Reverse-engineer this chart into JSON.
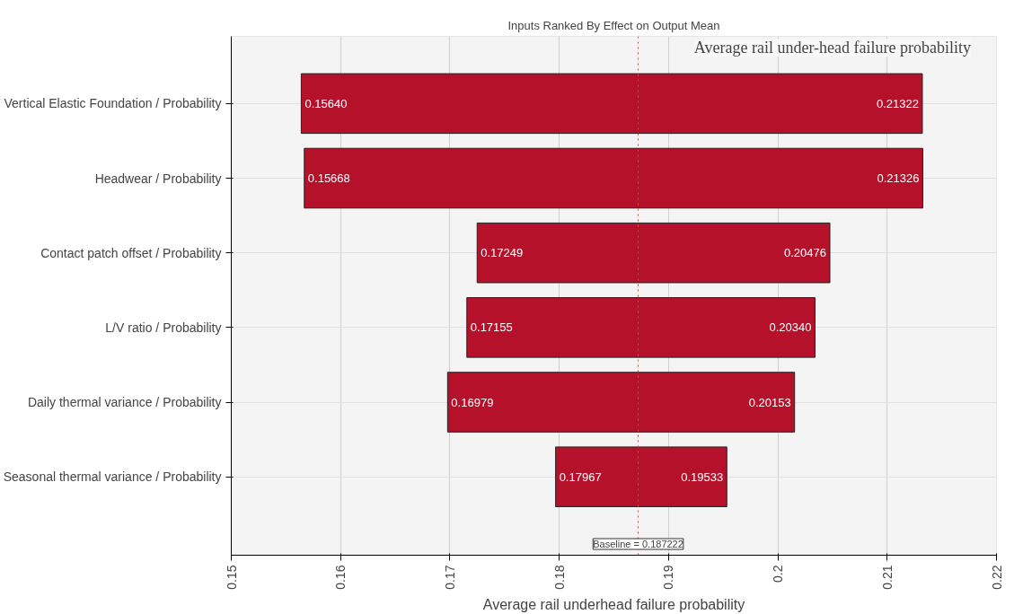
{
  "chart_data": {
    "type": "bar",
    "orientation": "horizontal",
    "title": "Inputs Ranked By Effect on Output Mean",
    "xlabel": "Average rail underhead failure probability",
    "categories": [
      "Vertical Elastic Foundation / Probability",
      "Headwear / Probability",
      "Contact patch offset / Probability",
      "L/V ratio / Probability",
      "Daily thermal variance / Probability",
      "Seasonal thermal variance / Probability"
    ],
    "base": [
      0.1564,
      0.15668,
      0.17249,
      0.17155,
      0.16979,
      0.17967
    ],
    "values": [
      0.05682,
      0.05658,
      0.03227,
      0.03185,
      0.03174,
      0.01566
    ],
    "color": "#b5112b",
    "xlim": [
      0.15,
      0.22
    ],
    "xticks": [
      0.15,
      0.16,
      0.17,
      0.18,
      0.19,
      0.2,
      0.21,
      0.22
    ],
    "grid": true,
    "ref_lines": [
      {
        "axis": "x",
        "value": 0.187222,
        "label": "Baseline = 0.187222",
        "color": "#c0504d",
        "line_style": "dotted"
      }
    ],
    "annotations": [
      "Average rail under-head failure probability",
      {
        "text": "0.15640",
        "x": 0.1564,
        "y": "Vertical Elastic Foundation / Probability"
      },
      {
        "text": "0.21322",
        "x": 0.21322,
        "y": "Vertical Elastic Foundation / Probability"
      },
      {
        "text": "0.15668",
        "x": 0.15668,
        "y": "Headwear / Probability"
      },
      {
        "text": "0.21326",
        "x": 0.21326,
        "y": "Headwear / Probability"
      },
      {
        "text": "0.17249",
        "x": 0.17249,
        "y": "Contact patch offset / Probability"
      },
      {
        "text": "0.20476",
        "x": 0.20476,
        "y": "Contact patch offset / Probability"
      },
      {
        "text": "0.17155",
        "x": 0.17155,
        "y": "L/V ratio / Probability"
      },
      {
        "text": "0.20340",
        "x": 0.2034,
        "y": "L/V ratio / Probability"
      },
      {
        "text": "0.16979",
        "x": 0.16979,
        "y": "Daily thermal variance / Probability"
      },
      {
        "text": "0.20153",
        "x": 0.20153,
        "y": "Daily thermal variance / Probability"
      },
      {
        "text": "0.17967",
        "x": 0.17967,
        "y": "Seasonal thermal variance / Probability"
      },
      {
        "text": "0.19533",
        "x": 0.19533,
        "y": "Seasonal thermal variance / Probability"
      }
    ]
  }
}
